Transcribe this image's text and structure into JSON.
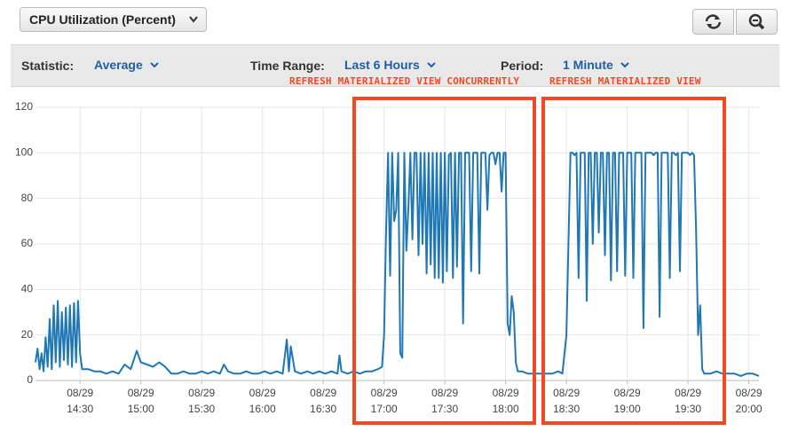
{
  "toolbar": {
    "metric_select": "CPU Utilization (Percent)",
    "controls": [
      {
        "label": "Statistic:",
        "value": "Average"
      },
      {
        "label": "Time Range:",
        "value": "Last 6 Hours"
      },
      {
        "label": "Period:",
        "value": "1 Minute"
      }
    ]
  },
  "chart_data": {
    "type": "line",
    "color": "#1f77b4",
    "grid": true,
    "annotations": [
      "REFRESH MATERIALIZED VIEW CONCURRENTLY",
      "REFRESH MATERIALIZED VIEW"
    ],
    "xlim": [
      "14:08",
      "20:05"
    ],
    "xticks": [
      {
        "value": "14:30",
        "label": "08/29\n14:30"
      },
      {
        "value": "15:00",
        "label": "08/29\n15:00"
      },
      {
        "value": "15:30",
        "label": "08/29\n15:30"
      },
      {
        "value": "16:00",
        "label": "08/29\n16:00"
      },
      {
        "value": "16:30",
        "label": "08/29\n16:30"
      },
      {
        "value": "17:00",
        "label": "08/29\n17:00"
      },
      {
        "value": "17:30",
        "label": "08/29\n17:30"
      },
      {
        "value": "18:00",
        "label": "08/29\n18:00"
      },
      {
        "value": "18:30",
        "label": "08/29\n18:30"
      },
      {
        "value": "19:00",
        "label": "08/29\n19:00"
      },
      {
        "value": "19:30",
        "label": "08/29\n19:30"
      },
      {
        "value": "20:00",
        "label": "08/29\n20:00"
      }
    ],
    "ylim": [
      0,
      120
    ],
    "yticks": [
      0,
      20,
      40,
      60,
      80,
      100,
      120
    ],
    "x": [
      "14:08",
      "14:09",
      "14:10",
      "14:11",
      "14:12",
      "14:13",
      "14:14",
      "14:15",
      "14:16",
      "14:17",
      "14:18",
      "14:19",
      "14:20",
      "14:21",
      "14:22",
      "14:23",
      "14:24",
      "14:25",
      "14:26",
      "14:27",
      "14:28",
      "14:29",
      "14:30",
      "14:31",
      "14:34",
      "14:37",
      "14:40",
      "14:43",
      "14:46",
      "14:49",
      "14:52",
      "14:55",
      "14:58",
      "15:00",
      "15:03",
      "15:06",
      "15:09",
      "15:12",
      "15:15",
      "15:18",
      "15:21",
      "15:24",
      "15:27",
      "15:30",
      "15:33",
      "15:36",
      "15:39",
      "15:41",
      "15:43",
      "15:46",
      "15:49",
      "15:52",
      "15:55",
      "15:58",
      "16:01",
      "16:04",
      "16:07",
      "16:10",
      "16:12",
      "16:13",
      "16:14",
      "16:16",
      "16:19",
      "16:22",
      "16:25",
      "16:28",
      "16:31",
      "16:34",
      "16:37",
      "16:38",
      "16:39",
      "16:42",
      "16:45",
      "16:48",
      "16:51",
      "16:54",
      "16:57",
      "16:59",
      "17:00",
      "17:01",
      "17:02",
      "17:03",
      "17:04",
      "17:05",
      "17:06",
      "17:07",
      "17:08",
      "17:09",
      "17:10",
      "17:11",
      "17:12",
      "17:13",
      "17:14",
      "17:15",
      "17:16",
      "17:17",
      "17:18",
      "17:19",
      "17:20",
      "17:21",
      "17:22",
      "17:23",
      "17:24",
      "17:25",
      "17:26",
      "17:27",
      "17:28",
      "17:29",
      "17:30",
      "17:31",
      "17:32",
      "17:33",
      "17:34",
      "17:35",
      "17:36",
      "17:37",
      "17:38",
      "17:39",
      "17:40",
      "17:41",
      "17:42",
      "17:43",
      "17:44",
      "17:45",
      "17:46",
      "17:47",
      "17:48",
      "17:49",
      "17:50",
      "17:51",
      "17:52",
      "17:53",
      "17:54",
      "17:55",
      "17:56",
      "17:57",
      "17:58",
      "17:59",
      "18:00",
      "18:01",
      "18:02",
      "18:03",
      "18:04",
      "18:05",
      "18:06",
      "18:08",
      "18:11",
      "18:14",
      "18:17",
      "18:20",
      "18:23",
      "18:26",
      "18:28",
      "18:30",
      "18:31",
      "18:32",
      "18:33",
      "18:34",
      "18:35",
      "18:36",
      "18:37",
      "18:38",
      "18:39",
      "18:40",
      "18:41",
      "18:42",
      "18:43",
      "18:44",
      "18:45",
      "18:46",
      "18:47",
      "18:48",
      "18:49",
      "18:50",
      "18:51",
      "18:52",
      "18:53",
      "18:54",
      "18:55",
      "18:56",
      "18:57",
      "18:58",
      "18:59",
      "19:00",
      "19:01",
      "19:02",
      "19:03",
      "19:04",
      "19:05",
      "19:06",
      "19:07",
      "19:08",
      "19:09",
      "19:10",
      "19:11",
      "19:12",
      "19:13",
      "19:14",
      "19:15",
      "19:16",
      "19:17",
      "19:18",
      "19:19",
      "19:20",
      "19:21",
      "19:22",
      "19:23",
      "19:24",
      "19:25",
      "19:26",
      "19:27",
      "19:28",
      "19:29",
      "19:30",
      "19:31",
      "19:32",
      "19:33",
      "19:34",
      "19:35",
      "19:36",
      "19:37",
      "19:38",
      "19:41",
      "19:44",
      "19:47",
      "19:50",
      "19:53",
      "19:56",
      "19:59",
      "20:02",
      "20:05"
    ],
    "values": [
      8,
      14,
      5,
      12,
      4,
      19,
      6,
      27,
      5,
      33,
      8,
      35,
      6,
      30,
      9,
      32,
      7,
      33,
      6,
      34,
      8,
      35,
      12,
      5,
      5,
      4,
      4,
      3,
      4,
      3,
      7,
      5,
      13,
      8,
      7,
      6,
      8,
      6,
      3,
      3,
      4,
      3,
      3,
      4,
      3,
      4,
      3,
      7,
      4,
      3,
      3,
      4,
      3,
      3,
      4,
      3,
      4,
      3,
      18,
      4,
      15,
      4,
      3,
      4,
      3,
      4,
      3,
      4,
      3,
      11,
      4,
      3,
      4,
      3,
      4,
      4,
      5,
      6,
      20,
      65,
      100,
      46,
      100,
      70,
      75,
      100,
      12,
      10,
      100,
      57,
      76,
      100,
      62,
      100,
      100,
      55,
      100,
      60,
      100,
      47,
      100,
      51,
      100,
      45,
      100,
      45,
      100,
      43,
      100,
      48,
      99,
      100,
      45,
      100,
      50,
      100,
      100,
      25,
      100,
      100,
      100,
      48,
      100,
      100,
      100,
      47,
      100,
      100,
      100,
      75,
      99,
      100,
      100,
      95,
      100,
      100,
      83,
      100,
      100,
      25,
      20,
      37,
      30,
      8,
      4,
      4,
      3,
      3,
      3,
      3,
      3,
      4,
      3,
      20,
      60,
      100,
      100,
      99,
      100,
      45,
      100,
      100,
      100,
      35,
      100,
      100,
      60,
      100,
      100,
      65,
      100,
      100,
      55,
      100,
      100,
      44,
      100,
      100,
      48,
      100,
      100,
      100,
      46,
      100,
      100,
      100,
      45,
      100,
      100,
      100,
      100,
      23,
      100,
      100,
      100,
      100,
      99,
      100,
      100,
      28,
      100,
      100,
      100,
      100,
      45,
      100,
      100,
      99,
      100,
      48,
      100,
      100,
      100,
      100,
      99,
      100,
      99,
      66,
      20,
      33,
      5,
      3,
      3,
      4,
      3,
      3,
      3,
      2,
      3,
      3,
      2
    ]
  }
}
